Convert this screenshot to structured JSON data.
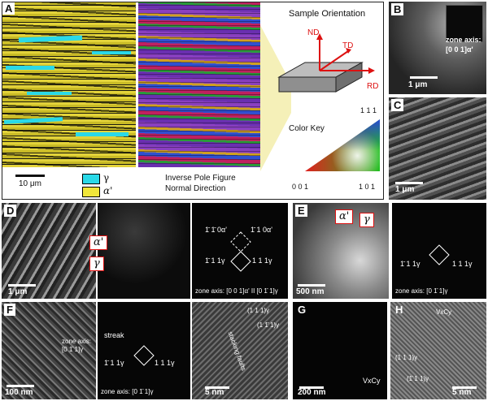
{
  "panelA": {
    "label": "A",
    "scale": "10 μm",
    "legend": [
      {
        "symbol": "γ",
        "color": "#2ad9e8"
      },
      {
        "symbol": "α'",
        "color": "#f0e63a"
      }
    ],
    "ipf_caption": [
      "Inverse Pole Figure",
      "Normal Direction"
    ],
    "orientation_title": "Sample Orientation",
    "axes": [
      "ND",
      "TD",
      "RD"
    ],
    "color_key_title": "Color Key",
    "color_key_labels": [
      "1 1 1",
      "0 0 1",
      "1 0 1"
    ]
  },
  "panelB": {
    "label": "B",
    "zone_axis": "zone axis:",
    "zone_value": "[0 0 1]α'",
    "scale": "1 μm"
  },
  "panelC": {
    "label": "C",
    "scale": "1 μm"
  },
  "panelD": {
    "label": "D",
    "scale": "1 μm",
    "phase_labels": [
      "α'",
      "γ"
    ],
    "spots": [
      "1̄ 1̄ 0α'",
      "1̄ 1 0α'",
      "1̄ 1 1γ",
      "1 1 1γ"
    ],
    "zone_axis": "zone axis: [0 0 1]α' II [0 1̄ 1]γ"
  },
  "panelE": {
    "label": "E",
    "scale": "500 nm",
    "phase_labels": [
      "α'",
      "γ"
    ],
    "spots": [
      "1̄ 1 1γ",
      "1 1 1γ"
    ],
    "zone_axis": "zone axis: [0 1̄ 1]γ"
  },
  "panelF": {
    "label": "F",
    "scale": "100 nm",
    "zone_axis_left": [
      "zone axis:",
      "[0 1̄ 1]γ"
    ],
    "streak": "streak",
    "spots": [
      "1̄ 1 1γ",
      "1 1 1γ"
    ],
    "zone_axis": "zone axis: [0 1̄ 1]γ",
    "hrtem_spots": [
      "(1 1 1)γ",
      "(1 1̄ 1)γ"
    ],
    "stacking_faults": "stacking faults",
    "hrtem_scale": "5 nm"
  },
  "panelG": {
    "label": "G",
    "scale": "200 nm",
    "carbide": "VxCy"
  },
  "panelH": {
    "label": "H",
    "carbide": "VxCy",
    "spots": [
      "(1 1 1)γ",
      "(1̄ 1 1)γ"
    ],
    "scale": "5 nm"
  }
}
